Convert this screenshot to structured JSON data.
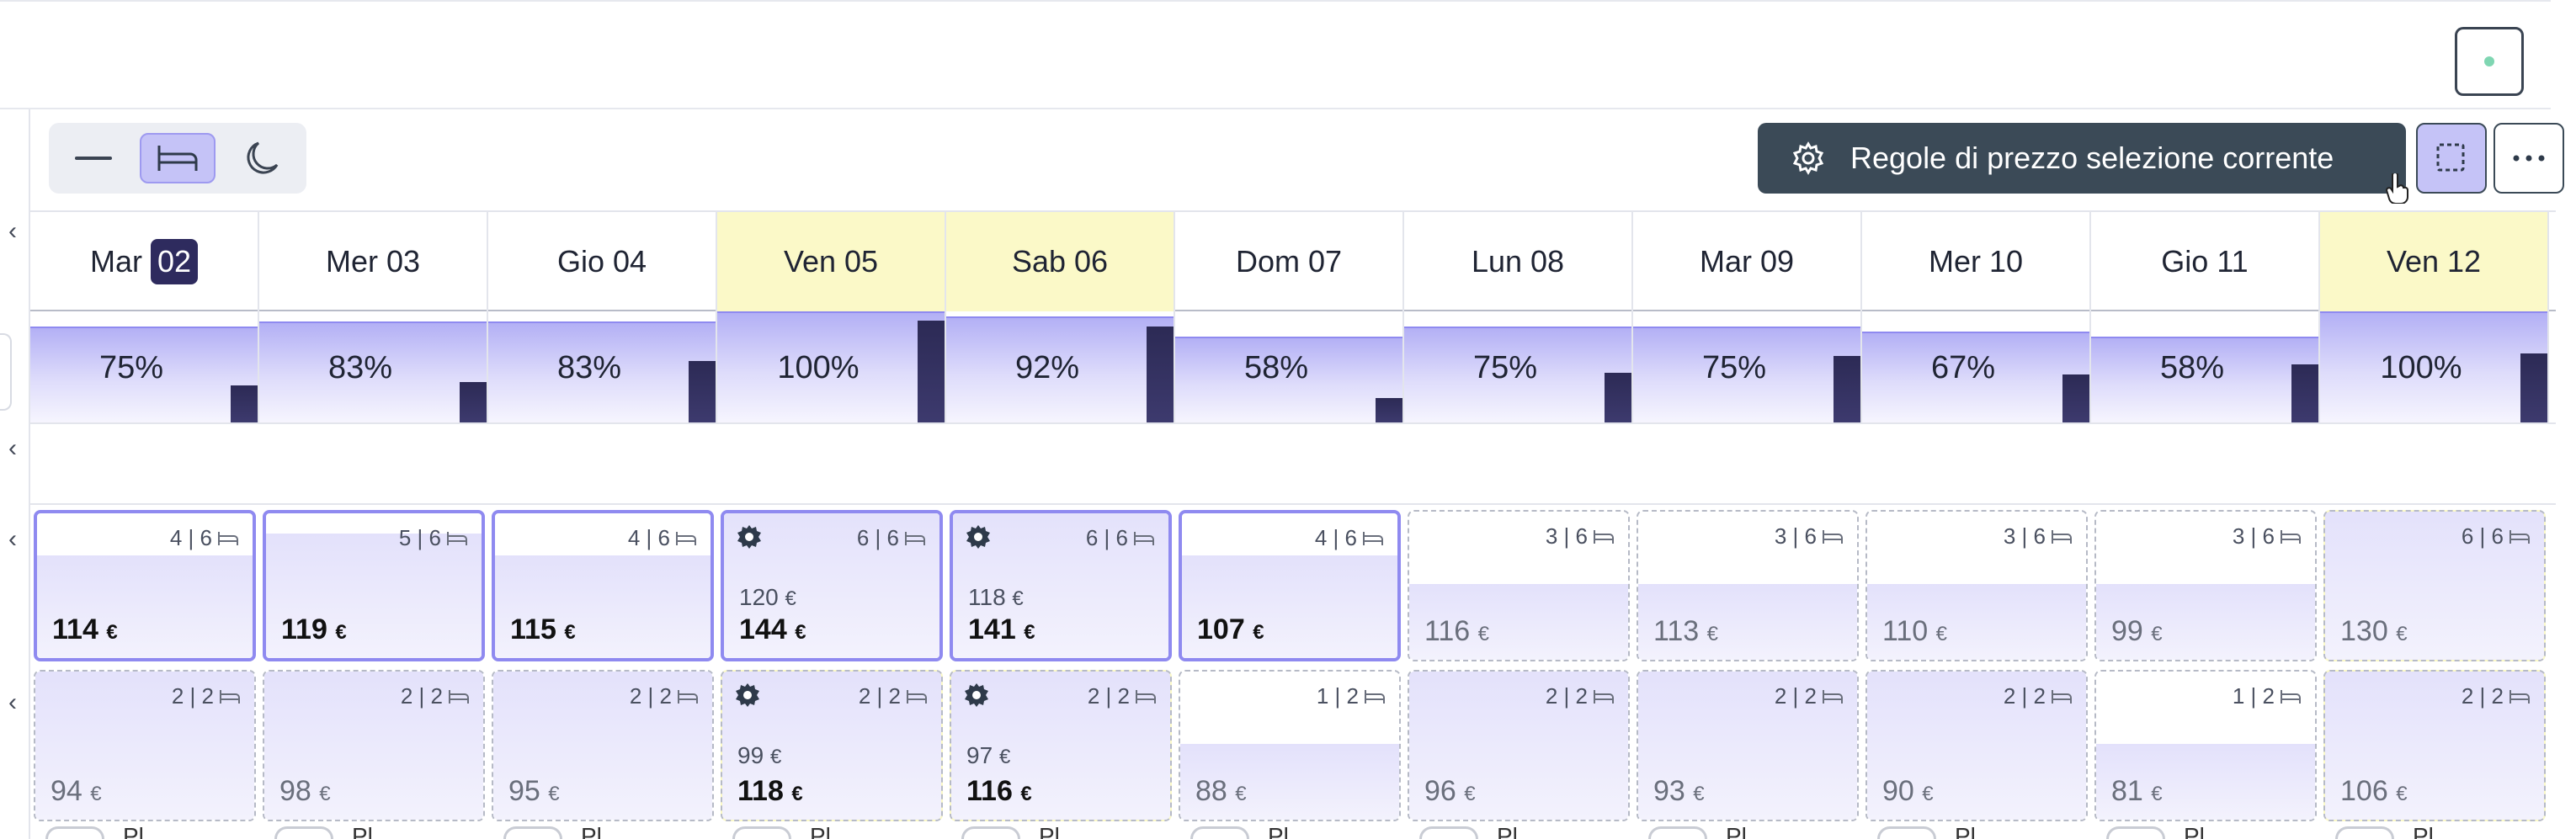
{
  "toolbar": {
    "rules_label": "Regole di prezzo selezione corrente"
  },
  "dates": [
    {
      "label": "Mar",
      "num": "02",
      "today": true,
      "weekend": false
    },
    {
      "label": "Mer 03",
      "today": false,
      "weekend": false
    },
    {
      "label": "Gio 04",
      "today": false,
      "weekend": false
    },
    {
      "label": "Ven 05",
      "today": false,
      "weekend": true
    },
    {
      "label": "Sab 06",
      "today": false,
      "weekend": true
    },
    {
      "label": "Dom 07",
      "today": false,
      "weekend": false
    },
    {
      "label": "Lun 08",
      "today": false,
      "weekend": false
    },
    {
      "label": "Mar 09",
      "today": false,
      "weekend": false
    },
    {
      "label": "Mer 10",
      "today": false,
      "weekend": false
    },
    {
      "label": "Gio 11",
      "today": false,
      "weekend": false
    },
    {
      "label": "Ven 12",
      "today": false,
      "weekend": true
    }
  ],
  "occupancy": [
    {
      "pct": "75%",
      "fill": 0.75,
      "bar": 0.33
    },
    {
      "pct": "83%",
      "fill": 0.83,
      "bar": 0.36
    },
    {
      "pct": "83%",
      "fill": 0.83,
      "bar": 0.55
    },
    {
      "pct": "100%",
      "fill": 1.0,
      "bar": 0.92
    },
    {
      "pct": "92%",
      "fill": 0.92,
      "bar": 0.86
    },
    {
      "pct": "58%",
      "fill": 0.58,
      "bar": 0.22
    },
    {
      "pct": "75%",
      "fill": 0.75,
      "bar": 0.45
    },
    {
      "pct": "75%",
      "fill": 0.75,
      "bar": 0.6
    },
    {
      "pct": "67%",
      "fill": 0.67,
      "bar": 0.43
    },
    {
      "pct": "58%",
      "fill": 0.58,
      "bar": 0.52
    },
    {
      "pct": "100%",
      "fill": 1.0,
      "bar": 0.62
    }
  ],
  "rate_rows": [
    {
      "cells": [
        {
          "avail": "4 | 6",
          "price": "114",
          "selected": true,
          "shade": 0.68
        },
        {
          "avail": "5 | 6",
          "price": "119",
          "selected": true,
          "shade": 0.82
        },
        {
          "avail": "4 | 6",
          "price": "115",
          "selected": true,
          "shade": 0.68
        },
        {
          "avail": "6 | 6",
          "price": "144",
          "old": "120",
          "selected": true,
          "gear": true,
          "shade": 1.0
        },
        {
          "avail": "6 | 6",
          "price": "141",
          "old": "118",
          "selected": true,
          "gear": true,
          "shade": 1.0
        },
        {
          "avail": "4 | 6",
          "price": "107",
          "selected": true,
          "shade": 0.68
        },
        {
          "avail": "3 | 6",
          "price": "116",
          "selected": false,
          "shade": 0.5
        },
        {
          "avail": "3 | 6",
          "price": "113",
          "selected": false,
          "shade": 0.5
        },
        {
          "avail": "3 | 6",
          "price": "110",
          "selected": false,
          "shade": 0.5
        },
        {
          "avail": "3 | 6",
          "price": "99",
          "selected": false,
          "shade": 0.5
        },
        {
          "avail": "6 | 6",
          "price": "130",
          "selected": false,
          "shade": 1.0,
          "weekend": true
        }
      ]
    },
    {
      "cells": [
        {
          "avail": "2 | 2",
          "price": "94",
          "selected": false,
          "shade": 1.0
        },
        {
          "avail": "2 | 2",
          "price": "98",
          "selected": false,
          "shade": 1.0
        },
        {
          "avail": "2 | 2",
          "price": "95",
          "selected": false,
          "shade": 1.0
        },
        {
          "avail": "2 | 2",
          "price": "118",
          "old": "99",
          "selected": false,
          "gear": true,
          "shade": 1.0,
          "weekend": true
        },
        {
          "avail": "2 | 2",
          "price": "116",
          "old": "97",
          "selected": false,
          "gear": true,
          "shade": 1.0,
          "weekend": true
        },
        {
          "avail": "1 | 2",
          "price": "88",
          "selected": false,
          "shade": 0.5
        },
        {
          "avail": "2 | 2",
          "price": "96",
          "selected": false,
          "shade": 1.0
        },
        {
          "avail": "2 | 2",
          "price": "93",
          "selected": false,
          "shade": 1.0
        },
        {
          "avail": "2 | 2",
          "price": "90",
          "selected": false,
          "shade": 1.0
        },
        {
          "avail": "1 | 2",
          "price": "81",
          "selected": false,
          "shade": 0.5
        },
        {
          "avail": "2 | 2",
          "price": "106",
          "selected": false,
          "shade": 1.0,
          "weekend": true
        }
      ]
    }
  ],
  "currency": "€",
  "toggle_label": "Pl",
  "colors": {
    "accent": "#8f8af0",
    "accent_light": "#c5c3f7",
    "dark": "#2e2b5e",
    "button_dark": "#3b4a57",
    "weekend": "#fbf9c8",
    "status_dot": "#7fd6b2"
  },
  "icons": {
    "mode_1": "minus-icon",
    "mode_2": "bed-icon",
    "mode_3": "moon-icon",
    "rules": "gear-icon",
    "select": "dashed-selection-icon",
    "more": "more-horizontal-icon"
  }
}
